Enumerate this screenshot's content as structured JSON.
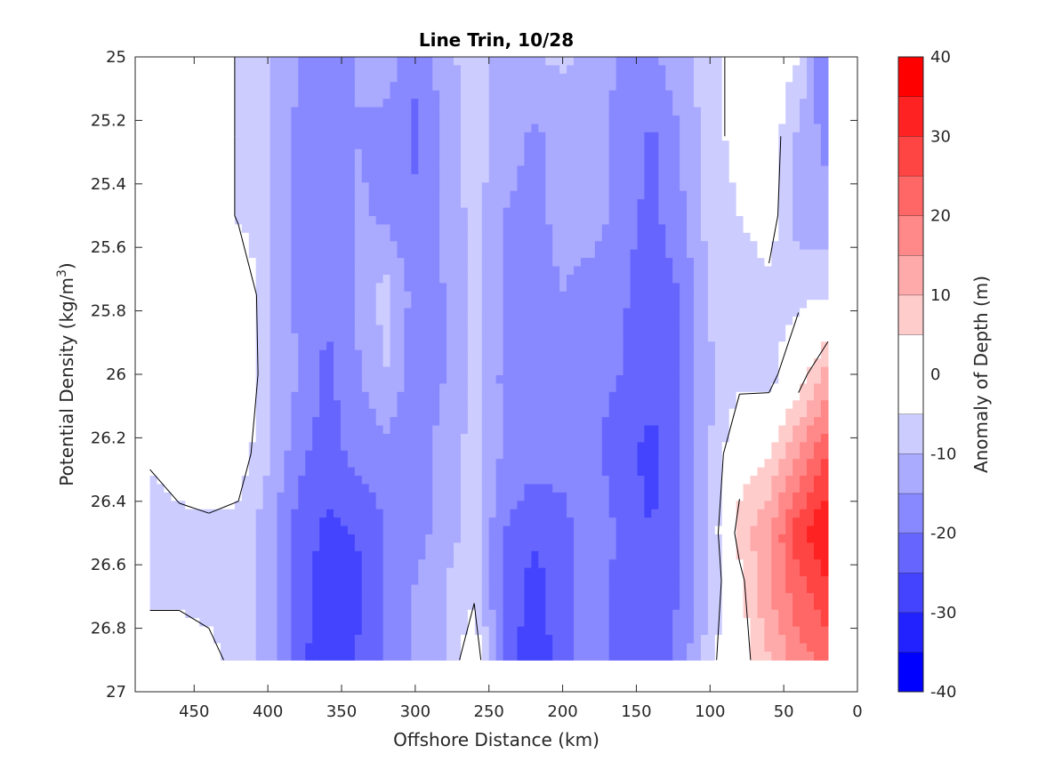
{
  "chart_data": {
    "type": "heatmap",
    "title": "Line Trin, 10/28",
    "xlabel": "Offshore Distance (km)",
    "ylabel_main": "Potential Density (kg/m",
    "ylabel_sup": "3",
    "ylabel_close": ")",
    "colorbar_label": "Anomaly of Depth (m)",
    "xlim": [
      490,
      0
    ],
    "ylim": [
      25,
      27
    ],
    "x_reversed": true,
    "y_reversed": true,
    "x_ticks": [
      450,
      400,
      350,
      300,
      250,
      200,
      150,
      100,
      50,
      0
    ],
    "y_ticks": [
      "25",
      "25.2",
      "25.4",
      "25.6",
      "25.8",
      "26",
      "26.2",
      "26.4",
      "26.6",
      "26.8",
      "27"
    ],
    "colorbar_ticks": [
      "40",
      "30",
      "20",
      "10",
      "0",
      "-10",
      "-20",
      "-30",
      "-40"
    ],
    "color_levels": [
      -40,
      -35,
      -30,
      -25,
      -20,
      -15,
      -10,
      -5,
      5,
      10,
      15,
      20,
      25,
      30,
      35,
      40
    ],
    "colors": {
      "neg_max": "#0000ff",
      "zero": "#ffffff",
      "pos_max": "#ff0000",
      "contour_line": "#000000"
    },
    "grid_x_km": [
      480,
      460,
      440,
      420,
      400,
      380,
      360,
      340,
      320,
      300,
      280,
      260,
      240,
      220,
      200,
      180,
      160,
      140,
      120,
      100,
      80,
      60,
      40,
      20
    ],
    "grid_y_density": [
      25.0,
      25.25,
      25.5,
      25.75,
      26.0,
      26.25,
      26.5,
      26.65,
      26.9
    ],
    "anomaly_m": [
      [
        0,
        2,
        2,
        -6,
        -9,
        -15,
        -16,
        -15,
        -12,
        -19,
        -12,
        -7,
        -12,
        -10,
        -9,
        -12,
        -16,
        -16,
        -12,
        -7,
        -3,
        0,
        -5,
        -22
      ],
      [
        0,
        2,
        2,
        -6,
        -9,
        -16,
        -20,
        -15,
        -17,
        -21,
        -14,
        -7,
        -12,
        -16,
        -14,
        -14,
        -16,
        -21,
        -15,
        -7,
        -3,
        -1,
        -11,
        -17
      ],
      [
        0,
        3,
        2,
        -6,
        -9,
        -16,
        -20,
        -14,
        -16,
        -19,
        -14,
        -8,
        -15,
        -17,
        -13,
        -13,
        -17,
        -22,
        -16,
        -8,
        -5,
        -2,
        -12,
        -13
      ],
      [
        2,
        1,
        2,
        3,
        -10,
        -16,
        -20,
        -14,
        -8,
        -17,
        -15,
        -9,
        -15,
        -18,
        -15,
        -17,
        -19,
        -24,
        -20,
        -9,
        -8,
        -7,
        -7,
        -5
      ],
      [
        -4,
        1,
        3,
        3,
        -9,
        -15,
        -21,
        -16,
        -10,
        -19,
        -15,
        -9,
        -16,
        -18,
        -16,
        -18,
        -20,
        -23,
        -20,
        -11,
        -7,
        -8,
        2,
        12
      ],
      [
        -4,
        0,
        1,
        -2,
        -9,
        -18,
        -23,
        -18,
        -17,
        -17,
        -13,
        -8,
        -16,
        -18,
        -18,
        -19,
        -23,
        -27,
        -20,
        -10,
        1,
        5,
        15,
        25
      ],
      [
        -9,
        -8,
        -7,
        -7,
        -13,
        -22,
        -26,
        -25,
        -20,
        -18,
        -12,
        -8,
        -20,
        -24,
        -22,
        -16,
        -21,
        -25,
        -21,
        -10,
        8,
        14,
        28,
        36
      ],
      [
        -8,
        -8,
        -8,
        -8,
        -12,
        -22,
        -28,
        -26,
        -20,
        -15,
        -10,
        -7,
        -21,
        -27,
        -22,
        -15,
        -23,
        -24,
        -20,
        -10,
        3,
        15,
        24,
        30
      ],
      [
        0,
        0,
        -3,
        -7,
        -13,
        -22,
        -30,
        -25,
        -20,
        -14,
        -10,
        0,
        -22,
        -28,
        -23,
        -15,
        -23,
        -24,
        -18,
        -7,
        2,
        10,
        18,
        22
      ]
    ]
  }
}
